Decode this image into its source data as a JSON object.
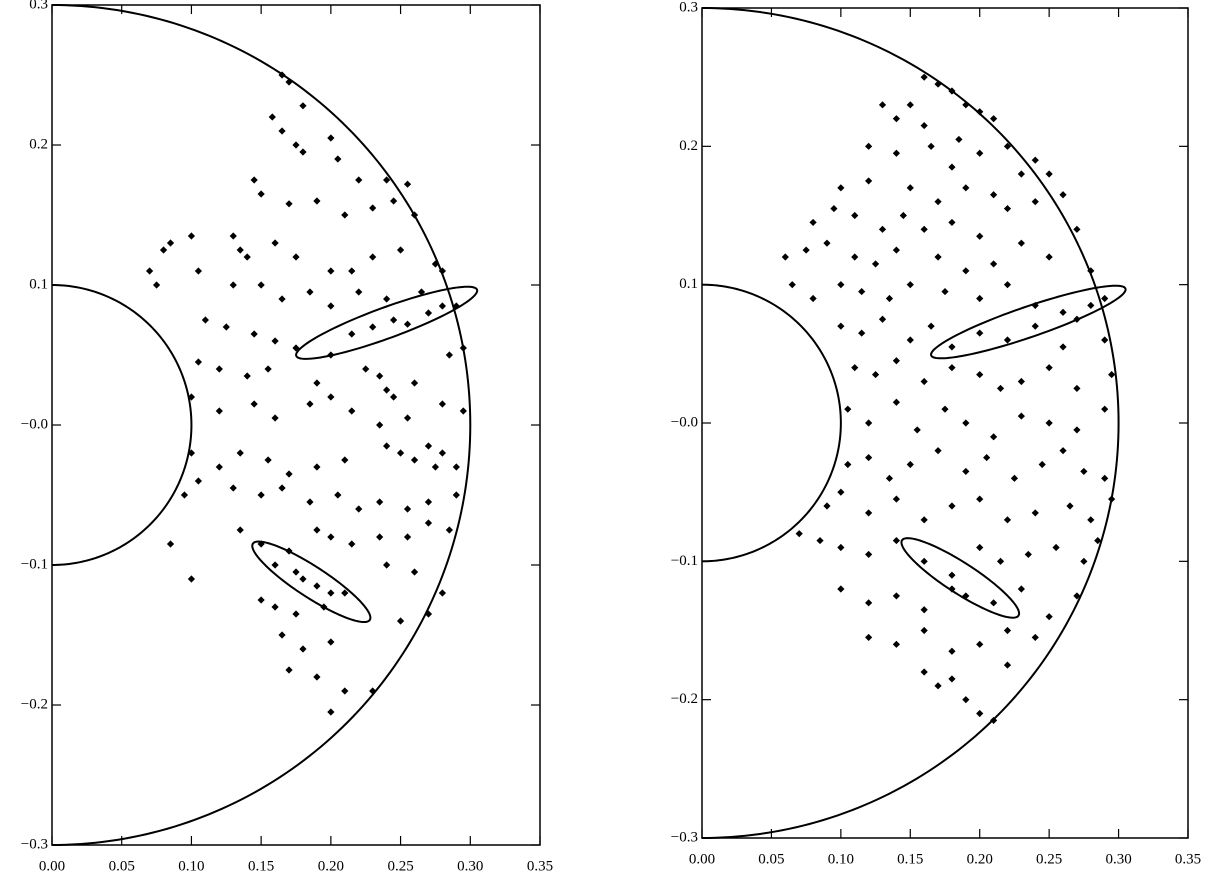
{
  "chart_data": [
    {
      "type": "scatter",
      "x": [
        0.165,
        0.17,
        0.18,
        0.158,
        0.165,
        0.175,
        0.18,
        0.2,
        0.205,
        0.22,
        0.24,
        0.255,
        0.145,
        0.15,
        0.17,
        0.19,
        0.21,
        0.23,
        0.245,
        0.26,
        0.08,
        0.085,
        0.1,
        0.13,
        0.135,
        0.14,
        0.16,
        0.175,
        0.2,
        0.215,
        0.23,
        0.25,
        0.275,
        0.28,
        0.07,
        0.075,
        0.105,
        0.13,
        0.15,
        0.165,
        0.185,
        0.2,
        0.22,
        0.24,
        0.265,
        0.29,
        0.11,
        0.125,
        0.145,
        0.16,
        0.175,
        0.2,
        0.215,
        0.23,
        0.245,
        0.255,
        0.27,
        0.28,
        0.105,
        0.12,
        0.14,
        0.155,
        0.19,
        0.225,
        0.235,
        0.24,
        0.245,
        0.26,
        0.285,
        0.295,
        0.1,
        0.12,
        0.145,
        0.16,
        0.185,
        0.2,
        0.215,
        0.235,
        0.255,
        0.28,
        0.295,
        0.1,
        0.12,
        0.135,
        0.155,
        0.17,
        0.19,
        0.21,
        0.24,
        0.25,
        0.26,
        0.27,
        0.28,
        0.29,
        0.275,
        0.095,
        0.105,
        0.13,
        0.15,
        0.165,
        0.185,
        0.205,
        0.22,
        0.235,
        0.255,
        0.27,
        0.29,
        0.085,
        0.1,
        0.135,
        0.15,
        0.17,
        0.19,
        0.2,
        0.215,
        0.235,
        0.255,
        0.27,
        0.285,
        0.16,
        0.175,
        0.18,
        0.19,
        0.2,
        0.21,
        0.15,
        0.16,
        0.175,
        0.195,
        0.24,
        0.26,
        0.28,
        0.25,
        0.27,
        0.165,
        0.18,
        0.2,
        0.17,
        0.19,
        0.21,
        0.23,
        0.2
      ],
      "values": [
        0.25,
        0.245,
        0.228,
        0.22,
        0.21,
        0.2,
        0.195,
        0.205,
        0.19,
        0.175,
        0.175,
        0.172,
        0.175,
        0.165,
        0.158,
        0.16,
        0.15,
        0.155,
        0.16,
        0.15,
        0.125,
        0.13,
        0.135,
        0.135,
        0.125,
        0.12,
        0.13,
        0.12,
        0.11,
        0.11,
        0.12,
        0.125,
        0.115,
        0.11,
        0.11,
        0.1,
        0.11,
        0.1,
        0.1,
        0.09,
        0.095,
        0.085,
        0.095,
        0.09,
        0.095,
        0.085,
        0.075,
        0.07,
        0.065,
        0.06,
        0.055,
        0.05,
        0.065,
        0.07,
        0.075,
        0.072,
        0.08,
        0.085,
        0.045,
        0.04,
        0.035,
        0.04,
        0.03,
        0.04,
        0.035,
        0.025,
        0.02,
        0.03,
        0.05,
        0.055,
        0.02,
        0.01,
        0.015,
        0.005,
        0.015,
        0.02,
        0.01,
        0.0,
        0.005,
        0.015,
        0.01,
        -0.02,
        -0.03,
        -0.02,
        -0.025,
        -0.035,
        -0.03,
        -0.025,
        -0.015,
        -0.02,
        -0.025,
        -0.015,
        -0.02,
        -0.03,
        -0.03,
        -0.05,
        -0.04,
        -0.045,
        -0.05,
        -0.045,
        -0.055,
        -0.05,
        -0.06,
        -0.055,
        -0.06,
        -0.055,
        -0.05,
        -0.085,
        -0.11,
        -0.075,
        -0.085,
        -0.09,
        -0.075,
        -0.08,
        -0.085,
        -0.08,
        -0.08,
        -0.07,
        -0.075,
        -0.1,
        -0.105,
        -0.11,
        -0.115,
        -0.12,
        -0.12,
        -0.125,
        -0.13,
        -0.135,
        -0.13,
        -0.1,
        -0.105,
        -0.12,
        -0.14,
        -0.135,
        -0.15,
        -0.16,
        -0.155,
        -0.175,
        -0.18,
        -0.19,
        -0.19,
        -0.205
      ],
      "color": "#000000",
      "circles": [
        0.1,
        0.3
      ],
      "ellipses": [
        {
          "cx": 0.24,
          "cy": 0.073,
          "a": 0.069,
          "b": 0.011,
          "angle": 20
        },
        {
          "cx": 0.186,
          "cy": -0.112,
          "a": 0.05,
          "b": 0.011,
          "angle": -33
        }
      ],
      "xlim": [
        0,
        0.35
      ],
      "ylim": [
        -0.3,
        0.3
      ],
      "xticks": [
        {
          "value": 0,
          "label": "0.00"
        },
        0.05,
        {
          "value": 0.1,
          "label": "0.10"
        },
        0.15,
        {
          "value": 0.2,
          "label": "0.20"
        },
        0.25,
        {
          "value": 0.3,
          "label": "0.30"
        },
        0.35
      ],
      "yticks": [
        {
          "value": -0.3,
          "label": "−0.3"
        },
        {
          "value": -0.2,
          "label": "−0.2"
        },
        {
          "value": -0.1,
          "label": "−0.1"
        },
        {
          "value": 0,
          "label": "−0.0"
        },
        0.1,
        0.2,
        0.3
      ]
    },
    {
      "type": "scatter",
      "x": [
        0.16,
        0.17,
        0.18,
        0.19,
        0.2,
        0.15,
        0.14,
        0.13,
        0.16,
        0.21,
        0.12,
        0.14,
        0.165,
        0.185,
        0.2,
        0.22,
        0.24,
        0.25,
        0.23,
        0.18,
        0.1,
        0.12,
        0.15,
        0.17,
        0.19,
        0.21,
        0.22,
        0.24,
        0.26,
        0.27,
        0.08,
        0.095,
        0.11,
        0.13,
        0.145,
        0.16,
        0.18,
        0.2,
        0.23,
        0.25,
        0.06,
        0.075,
        0.09,
        0.11,
        0.125,
        0.14,
        0.17,
        0.19,
        0.21,
        0.28,
        0.065,
        0.08,
        0.1,
        0.115,
        0.135,
        0.15,
        0.175,
        0.2,
        0.22,
        0.24,
        0.26,
        0.27,
        0.28,
        0.29,
        0.1,
        0.115,
        0.13,
        0.15,
        0.165,
        0.18,
        0.2,
        0.22,
        0.24,
        0.26,
        0.29,
        0.11,
        0.125,
        0.14,
        0.16,
        0.18,
        0.2,
        0.215,
        0.23,
        0.25,
        0.27,
        0.295,
        0.105,
        0.12,
        0.14,
        0.155,
        0.175,
        0.19,
        0.21,
        0.23,
        0.25,
        0.27,
        0.29,
        0.105,
        0.12,
        0.135,
        0.15,
        0.17,
        0.19,
        0.205,
        0.225,
        0.245,
        0.26,
        0.275,
        0.29,
        0.09,
        0.1,
        0.12,
        0.14,
        0.16,
        0.18,
        0.2,
        0.22,
        0.24,
        0.265,
        0.28,
        0.295,
        0.07,
        0.085,
        0.1,
        0.12,
        0.14,
        0.16,
        0.18,
        0.2,
        0.215,
        0.235,
        0.255,
        0.275,
        0.285,
        0.1,
        0.12,
        0.14,
        0.16,
        0.18,
        0.19,
        0.21,
        0.23,
        0.25,
        0.27,
        0.12,
        0.14,
        0.16,
        0.18,
        0.2,
        0.22,
        0.24,
        0.16,
        0.17,
        0.18,
        0.19,
        0.2,
        0.21,
        0.22
      ],
      "values": [
        0.25,
        0.245,
        0.24,
        0.23,
        0.225,
        0.23,
        0.22,
        0.23,
        0.215,
        0.22,
        0.2,
        0.195,
        0.2,
        0.205,
        0.195,
        0.2,
        0.19,
        0.18,
        0.18,
        0.185,
        0.17,
        0.175,
        0.17,
        0.16,
        0.17,
        0.165,
        0.155,
        0.16,
        0.165,
        0.14,
        0.145,
        0.155,
        0.15,
        0.14,
        0.15,
        0.14,
        0.145,
        0.135,
        0.13,
        0.12,
        0.12,
        0.125,
        0.13,
        0.12,
        0.115,
        0.125,
        0.12,
        0.11,
        0.115,
        0.11,
        0.1,
        0.09,
        0.1,
        0.095,
        0.09,
        0.1,
        0.095,
        0.09,
        0.1,
        0.085,
        0.08,
        0.075,
        0.085,
        0.09,
        0.07,
        0.065,
        0.075,
        0.06,
        0.07,
        0.055,
        0.065,
        0.06,
        0.07,
        0.055,
        0.06,
        0.04,
        0.035,
        0.045,
        0.03,
        0.04,
        0.035,
        0.025,
        0.03,
        0.04,
        0.025,
        0.035,
        0.01,
        0.0,
        0.015,
        -0.005,
        0.01,
        0.0,
        -0.01,
        0.005,
        0.0,
        -0.005,
        0.01,
        -0.03,
        -0.025,
        -0.04,
        -0.03,
        -0.02,
        -0.035,
        -0.025,
        -0.04,
        -0.03,
        -0.02,
        -0.035,
        -0.04,
        -0.06,
        -0.05,
        -0.065,
        -0.055,
        -0.07,
        -0.06,
        -0.055,
        -0.07,
        -0.065,
        -0.06,
        -0.07,
        -0.055,
        -0.08,
        -0.085,
        -0.09,
        -0.095,
        -0.085,
        -0.1,
        -0.11,
        -0.09,
        -0.1,
        -0.095,
        -0.09,
        -0.1,
        -0.085,
        -0.12,
        -0.13,
        -0.125,
        -0.135,
        -0.12,
        -0.125,
        -0.13,
        -0.12,
        -0.14,
        -0.125,
        -0.155,
        -0.16,
        -0.15,
        -0.165,
        -0.16,
        -0.15,
        -0.155,
        -0.18,
        -0.19,
        -0.185,
        -0.2,
        -0.21,
        -0.215,
        -0.175
      ],
      "color": "#000000",
      "circles": [
        0.1,
        0.3
      ],
      "ellipses": [
        {
          "cx": 0.235,
          "cy": 0.073,
          "a": 0.074,
          "b": 0.011,
          "angle": 19
        },
        {
          "cx": 0.186,
          "cy": -0.112,
          "a": 0.05,
          "b": 0.011,
          "angle": -33
        }
      ],
      "xlim": [
        0,
        0.35
      ],
      "ylim": [
        -0.3,
        0.3
      ],
      "xticks": [
        {
          "value": 0,
          "label": "0.00"
        },
        0.05,
        {
          "value": 0.1,
          "label": "0.10"
        },
        0.15,
        {
          "value": 0.2,
          "label": "0.20"
        },
        0.25,
        {
          "value": 0.3,
          "label": "0.30"
        },
        0.35
      ],
      "yticks": [
        {
          "value": -0.3,
          "label": "−0.3"
        },
        {
          "value": -0.2,
          "label": "−0.2"
        },
        {
          "value": -0.1,
          "label": "−0.1"
        },
        {
          "value": 0,
          "label": "−0.0"
        },
        0.1,
        0.2,
        0.3
      ]
    }
  ]
}
